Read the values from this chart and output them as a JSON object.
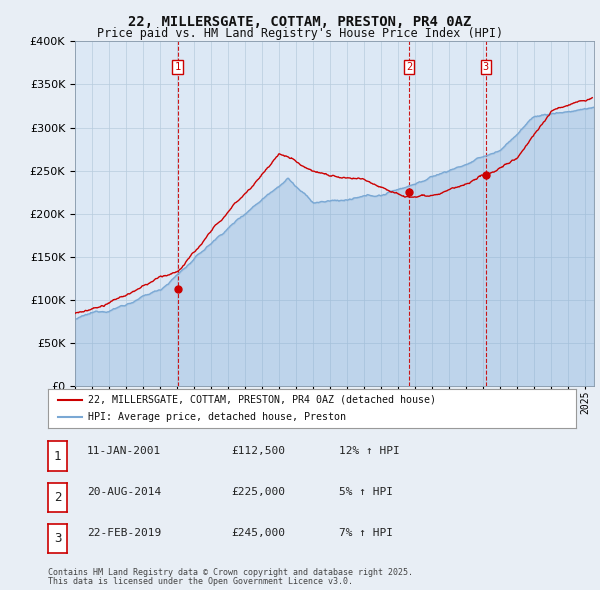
{
  "title": "22, MILLERSGATE, COTTAM, PRESTON, PR4 0AZ",
  "subtitle": "Price paid vs. HM Land Registry's House Price Index (HPI)",
  "legend_line1": "22, MILLERSGATE, COTTAM, PRESTON, PR4 0AZ (detached house)",
  "legend_line2": "HPI: Average price, detached house, Preston",
  "sale_color": "#cc0000",
  "hpi_color": "#7aa8d4",
  "vline_color": "#cc0000",
  "background_color": "#e8eef5",
  "plot_bg_color": "#dce8f5",
  "grid_color": "#b8ccdd",
  "sales": [
    {
      "label": "1",
      "date_x": 2001.03,
      "price": 112500,
      "hpi_pct": 12,
      "date_str": "11-JAN-2001"
    },
    {
      "label": "2",
      "date_x": 2014.64,
      "price": 225000,
      "hpi_pct": 5,
      "date_str": "20-AUG-2014"
    },
    {
      "label": "3",
      "date_x": 2019.14,
      "price": 245000,
      "hpi_pct": 7,
      "date_str": "22-FEB-2019"
    }
  ],
  "ylim": [
    0,
    400000
  ],
  "xlim": [
    1995.0,
    2025.5
  ],
  "yticks": [
    0,
    50000,
    100000,
    150000,
    200000,
    250000,
    300000,
    350000,
    400000
  ],
  "footer_line1": "Contains HM Land Registry data © Crown copyright and database right 2025.",
  "footer_line2": "This data is licensed under the Open Government Licence v3.0."
}
